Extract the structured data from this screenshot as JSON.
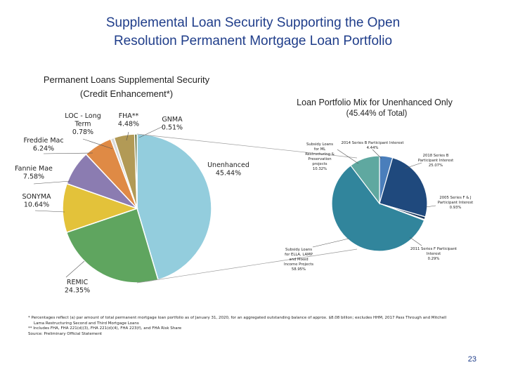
{
  "slide": {
    "title_line1": "Supplemental Loan Security Supporting the Open",
    "title_line2": "Resolution Permanent Mortgage Loan Portfolio",
    "page_number": "23"
  },
  "colors": {
    "title": "#1f3d8a"
  },
  "footnotes": {
    "line1": "* Percentages reflect (a) par amount of total permanent mortgage loan portfolio as of January 31, 2020, for an aggregated outstanding balance of approx. $8.08 billion; excludes HHM, 2017 Pass Through and Mitchell",
    "line2": "Lama Restructuring Second and Third Mortgage Loans",
    "line3": "** Includes FHA, FHA 221(d)(3), FHA 221(d)(4), FHA 223(f), and FHA Risk Share",
    "line4": "Source: Preliminary Official Statement"
  },
  "chart_data": [
    {
      "type": "pie",
      "title": "Permanent Loans Supplemental Security",
      "subtitle": "(Credit Enhancement*)",
      "slices": [
        {
          "name": "Unenhanced",
          "value": 45.44,
          "label": "Unenhanced\n45.44%",
          "color": "#93cddd"
        },
        {
          "name": "REMIC",
          "value": 24.35,
          "label": "REMIC\n24.35%",
          "color": "#5fa55f"
        },
        {
          "name": "SONYMA",
          "value": 10.64,
          "label": "SONYMA\n10.64%",
          "color": "#e3c23a"
        },
        {
          "name": "Fannie Mae",
          "value": 7.58,
          "label": "Fannie Mae\n7.58%",
          "color": "#8b7cb1"
        },
        {
          "name": "Freddie Mac",
          "value": 6.24,
          "label": "Freddie Mac\n6.24%",
          "color": "#df8a45"
        },
        {
          "name": "LOC - Long Term",
          "value": 0.78,
          "label": "LOC - Long\nTerm\n0.78%",
          "color": "#d9d9d9"
        },
        {
          "name": "FHA**",
          "value": 4.48,
          "label": "FHA**\n4.48%",
          "color": "#b29a56"
        },
        {
          "name": "GNMA",
          "value": 0.51,
          "label": "GNMA\n0.51%",
          "color": "#4f6228"
        }
      ]
    },
    {
      "type": "pie",
      "title": "Loan Portfolio Mix for Unenhanced Only",
      "subtitle": "(45.44% of Total)",
      "slices": [
        {
          "name": "2014 Series B Participant Interest",
          "value": 4.44,
          "label": "2014 Series B Participant Interest\n4.44%",
          "color": "#4a7ebb"
        },
        {
          "name": "2018 Series B Participant Interest",
          "value": 25.07,
          "label": "2018 Series B\nParticipant Interest\n25.07%",
          "color": "#1f497d"
        },
        {
          "name": "2005 Series F & J Participant Interest",
          "value": 0.93,
          "label": "2005 Series F & J\nParticipant Interest\n0.93%",
          "color": "#16365c"
        },
        {
          "name": "2011 Series F Participant Interest",
          "value": 0.29,
          "label": "2011 Series F Participant\nInterest\n0.29%",
          "color": "#17375e"
        },
        {
          "name": "Subsidy Loans for ELLA, LAMP and Mixed Income Projects",
          "value": 58.95,
          "label": "Subsidy Loans\nfor ELLA, LAMP\nand Mixed\nIncome Projects\n58.95%",
          "color": "#31859c"
        },
        {
          "name": "Subsidy Loans for ML Restructuring & Preservation projects",
          "value": 10.32,
          "label": "Subsidy Loans\nfor ML\nRestructuring &\nPreservation\nprojects\n10.32%",
          "color": "#5fa8a0"
        }
      ]
    }
  ]
}
